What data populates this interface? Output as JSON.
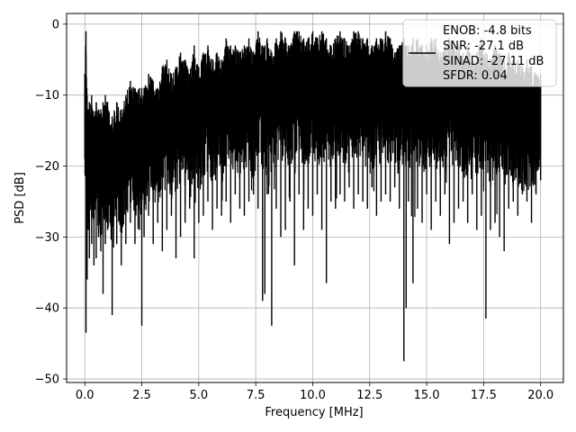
{
  "chart_data": {
    "type": "line",
    "title": "",
    "xlabel": "Frequency [MHz]",
    "ylabel": "PSD [dB]",
    "xlim": [
      -0.8,
      21.0
    ],
    "ylim": [
      -50.5,
      1.5
    ],
    "grid": true,
    "legend_position": "top-right",
    "series_color": "#000000",
    "xticks": [
      {
        "value": 0.0,
        "label": "0.0"
      },
      {
        "value": 2.5,
        "label": "2.5"
      },
      {
        "value": 5.0,
        "label": "5.0"
      },
      {
        "value": 7.5,
        "label": "7.5"
      },
      {
        "value": 10.0,
        "label": "10.0"
      },
      {
        "value": 12.5,
        "label": "12.5"
      },
      {
        "value": 15.0,
        "label": "15.0"
      },
      {
        "value": 17.5,
        "label": "17.5"
      },
      {
        "value": 20.0,
        "label": "20.0"
      }
    ],
    "yticks": [
      {
        "value": 0,
        "label": "0"
      },
      {
        "value": -10,
        "label": "−10"
      },
      {
        "value": -20,
        "label": "−20"
      },
      {
        "value": -30,
        "label": "−30"
      },
      {
        "value": -40,
        "label": "−40"
      },
      {
        "value": -50,
        "label": "−50"
      }
    ],
    "legend_lines": [
      "ENOB: -4.8 bits",
      "SNR: -27.1 dB",
      "SINAD: -27.11 dB",
      "SFDR: 0.04"
    ],
    "series": [
      {
        "x": [
          0.0,
          0.05,
          0.1,
          0.15,
          0.2,
          0.3,
          0.4,
          0.5,
          0.6,
          0.7,
          0.8,
          0.9,
          1.0,
          1.2,
          1.4,
          1.6,
          1.8,
          2.0,
          2.2,
          2.4,
          2.5,
          2.6,
          2.8,
          3.0,
          3.2,
          3.4,
          3.6,
          3.8,
          4.0,
          4.2,
          4.4,
          4.6,
          4.8,
          5.0,
          5.2,
          5.4,
          5.6,
          5.8,
          6.0,
          6.2,
          6.4,
          6.6,
          6.8,
          7.0,
          7.2,
          7.4,
          7.6,
          7.8,
          7.9,
          8.0,
          8.2,
          8.4,
          8.6,
          8.8,
          9.0,
          9.2,
          9.4,
          9.6,
          9.8,
          10.0,
          10.2,
          10.4,
          10.6,
          10.8,
          11.0,
          11.2,
          11.4,
          11.6,
          11.8,
          12.0,
          12.2,
          12.4,
          12.6,
          12.8,
          13.0,
          13.2,
          13.4,
          13.6,
          13.8,
          14.0,
          14.1,
          14.2,
          14.4,
          14.6,
          14.8,
          15.0,
          15.2,
          15.4,
          15.6,
          15.8,
          16.0,
          16.2,
          16.4,
          16.6,
          16.8,
          17.0,
          17.2,
          17.4,
          17.6,
          17.8,
          18.0,
          18.2,
          18.4,
          18.6,
          18.8,
          19.0,
          19.2,
          19.4,
          19.6,
          19.8,
          20.0
        ],
        "max": [
          -7,
          -1,
          -10,
          -12,
          -11,
          -10,
          -13,
          -11,
          -12,
          -12,
          -11,
          -10,
          -11,
          -13,
          -11,
          -12,
          -10,
          -8,
          -9,
          -9,
          -9,
          -9,
          -7,
          -8,
          -9,
          -6,
          -5,
          -7,
          -6,
          -4,
          -5,
          -7,
          -3,
          -6,
          -4,
          -3,
          -5,
          -4,
          -5,
          -2,
          -3,
          -3,
          -4,
          -3,
          -2,
          -4,
          -1,
          -3,
          -3,
          -2,
          -4,
          -2,
          -1,
          -2,
          -3,
          -1,
          -1,
          -2,
          -2,
          -1,
          -2,
          -1,
          -2,
          -3,
          -2,
          -1,
          -2,
          -3,
          -1,
          -1,
          -2,
          -2,
          -3,
          -2,
          -2,
          -1,
          -2,
          -4,
          -3,
          -2,
          -3,
          -3,
          -2,
          -2,
          -3,
          -3,
          -2,
          -2,
          -4,
          -3,
          -2,
          -3,
          -3,
          -4,
          -3,
          -5,
          -4,
          -2,
          -4,
          -5,
          -3,
          -4,
          -5,
          -4,
          -5,
          -5,
          -6,
          -5,
          -6,
          -7,
          -7
        ],
        "min": [
          -19,
          -43.5,
          -36,
          -29,
          -33,
          -31,
          -34,
          -33,
          -30,
          -32,
          -38,
          -31,
          -29,
          -41,
          -31,
          -34,
          -31,
          -28,
          -31,
          -29,
          -42.5,
          -30,
          -27,
          -31,
          -28,
          -32,
          -29,
          -27,
          -33,
          -30,
          -28,
          -26,
          -33,
          -28,
          -27,
          -25,
          -29,
          -26,
          -27,
          -25,
          -28,
          -24,
          -26,
          -27,
          -25,
          -24,
          -26,
          -39,
          -38,
          -24,
          -42.5,
          -26,
          -30,
          -29,
          -25,
          -34,
          -24,
          -29,
          -26,
          -27,
          -24,
          -29,
          -36.5,
          -25,
          -26,
          -24,
          -25,
          -23,
          -26,
          -24,
          -25,
          -26,
          -23,
          -27,
          -25,
          -24,
          -25,
          -23,
          -26,
          -47.5,
          -40,
          -25,
          -36.5,
          -26,
          -28,
          -24,
          -29,
          -25,
          -27,
          -24,
          -31,
          -28,
          -26,
          -25,
          -28,
          -24,
          -29,
          -27,
          -41.5,
          -29,
          -28,
          -30,
          -32,
          -26,
          -25,
          -27,
          -24,
          -25,
          -28,
          -24,
          -22
        ]
      }
    ]
  }
}
